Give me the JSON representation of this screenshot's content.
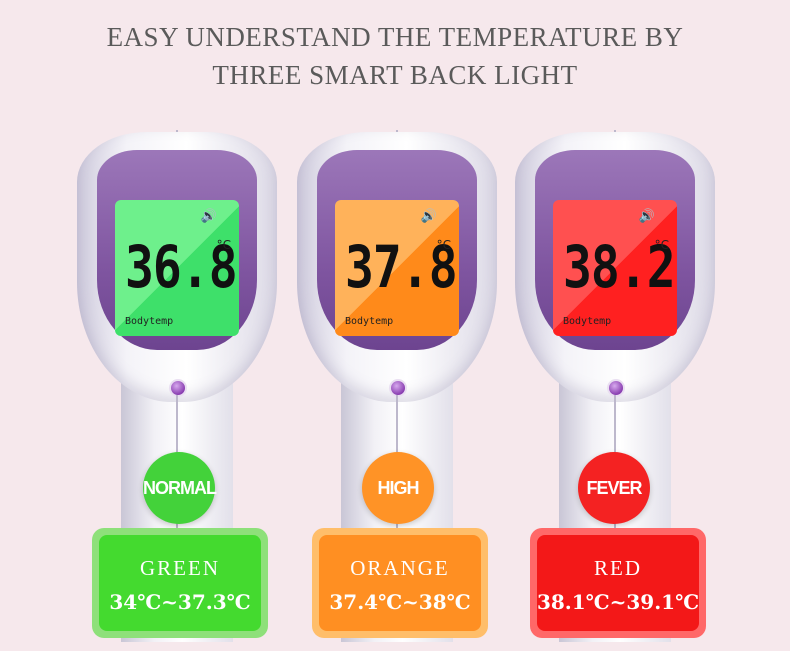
{
  "headline": {
    "line1": "EASY UNDERSTAND THE TEMPERATURE BY",
    "line2": "THREE SMART BACK LIGHT"
  },
  "devices": [
    {
      "reading": "36.8",
      "unit": "°C",
      "mode": "Bodytemp",
      "speaker_icon": "speaker-icon",
      "backlight": "#3ee06a",
      "backlight_light": "#6ef08c",
      "badge": "NORMAL",
      "badge_color": "#43d23a",
      "color_name": "GREEN",
      "range": "34℃~37.3℃",
      "card_border": "#8ee07a",
      "card_fill": "#44da2f"
    },
    {
      "reading": "37.8",
      "unit": "°C",
      "mode": "Bodytemp",
      "speaker_icon": "speaker-icon",
      "backlight": "#ff8a1a",
      "backlight_light": "#ffb25a",
      "badge": "HIGH",
      "badge_color": "#ff9326",
      "color_name": "ORANGE",
      "range": "37.4℃~38℃",
      "card_border": "#ffbe6a",
      "card_fill": "#ff8f22"
    },
    {
      "reading": "38.2",
      "unit": "°C",
      "mode": "Bodytemp",
      "speaker_icon": "speaker-icon",
      "backlight": "#ff2020",
      "backlight_light": "#ff5050",
      "badge": "FEVER",
      "badge_color": "#f42222",
      "color_name": "RED",
      "range": "38.1℃~39.1℃",
      "card_border": "#ff6868",
      "card_fill": "#f31818"
    }
  ]
}
